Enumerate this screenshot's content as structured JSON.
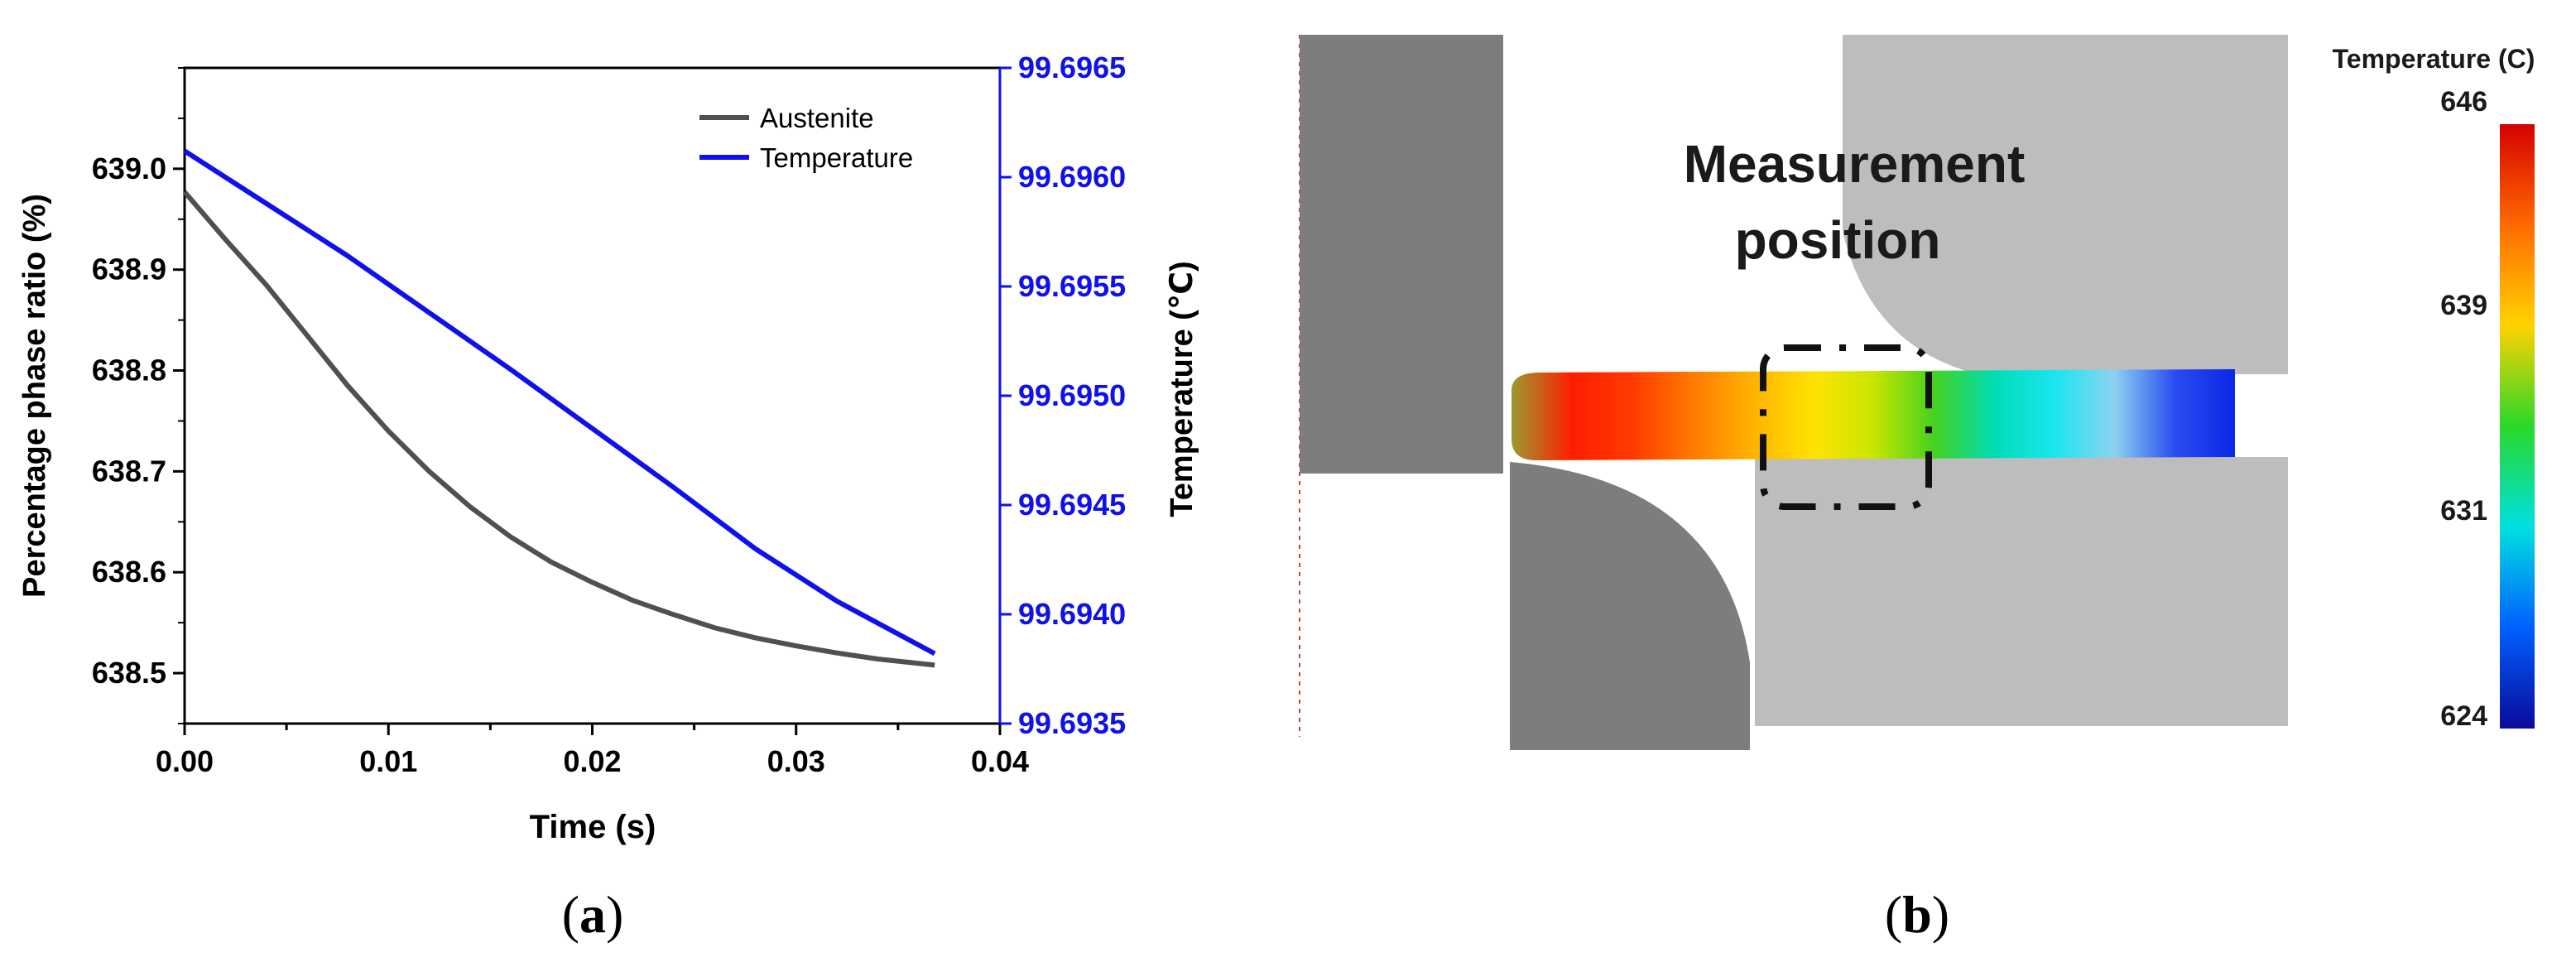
{
  "chart_data": [
    {
      "type": "line",
      "caption": {
        "open": "(",
        "letter": "a",
        "close": ")"
      },
      "xlabel": "Time (s)",
      "ylabel_left": "Percentage phase ratio (%)",
      "ylabel_right": "Temperature (℃)",
      "xlim": [
        0.0,
        0.04
      ],
      "ylim_left": [
        638.45,
        639.1
      ],
      "ylim_right": [
        99.6935,
        99.6965
      ],
      "x_ticks": [
        "0.00",
        "0.01",
        "0.02",
        "0.03",
        "0.04"
      ],
      "y_ticks_left": [
        "638.5",
        "638.6",
        "638.7",
        "638.8",
        "638.9",
        "639.0"
      ],
      "y_ticks_right": [
        "99.6935",
        "99.6940",
        "99.6945",
        "99.6950",
        "99.6955",
        "99.6960",
        "99.6965"
      ],
      "legend": "top-right",
      "series": [
        {
          "name": "Austenite",
          "axis": "left",
          "color": "#505050",
          "x": [
            0.0,
            0.002,
            0.004,
            0.006,
            0.008,
            0.01,
            0.012,
            0.014,
            0.016,
            0.018,
            0.02,
            0.022,
            0.024,
            0.026,
            0.028,
            0.03,
            0.032,
            0.034,
            0.0368
          ],
          "y": [
            638.977,
            638.93,
            638.885,
            638.835,
            638.785,
            638.74,
            638.7,
            638.665,
            638.635,
            638.61,
            638.59,
            638.572,
            638.558,
            638.545,
            638.535,
            638.527,
            638.52,
            638.514,
            638.508
          ]
        },
        {
          "name": "Temperature",
          "axis": "right",
          "color": "#1010ee",
          "x": [
            0.0,
            0.004,
            0.008,
            0.012,
            0.016,
            0.02,
            0.024,
            0.028,
            0.032,
            0.0368
          ],
          "y": [
            99.69612,
            99.69588,
            99.69564,
            99.69538,
            99.69512,
            99.69485,
            99.69458,
            99.6943,
            99.69406,
            99.69382
          ]
        }
      ]
    },
    {
      "type": "heatmap",
      "caption": {
        "open": "(",
        "letter": "b",
        "close": ")"
      },
      "annotation": [
        "Measurement",
        "position"
      ],
      "colorbar": {
        "title": "Temperature (C)",
        "tick_labels": [
          "646",
          "639",
          "631",
          "624"
        ],
        "values": [
          646,
          639,
          631,
          624
        ],
        "range": [
          624,
          646
        ],
        "colors": [
          "#d40000",
          "#ff6a00",
          "#ffd200",
          "#2ad82a",
          "#00e0e0",
          "#0060ff",
          "#0a0a9a"
        ]
      },
      "strip_colors": [
        "#9a9a30",
        "#ff1e00",
        "#ff3a00",
        "#ff7a00",
        "#ffb300",
        "#ffe200",
        "#c8e600",
        "#46d21e",
        "#00dcb4",
        "#19e6f0",
        "#8cd2f0",
        "#2a4cf0",
        "#0a28e6"
      ]
    }
  ]
}
